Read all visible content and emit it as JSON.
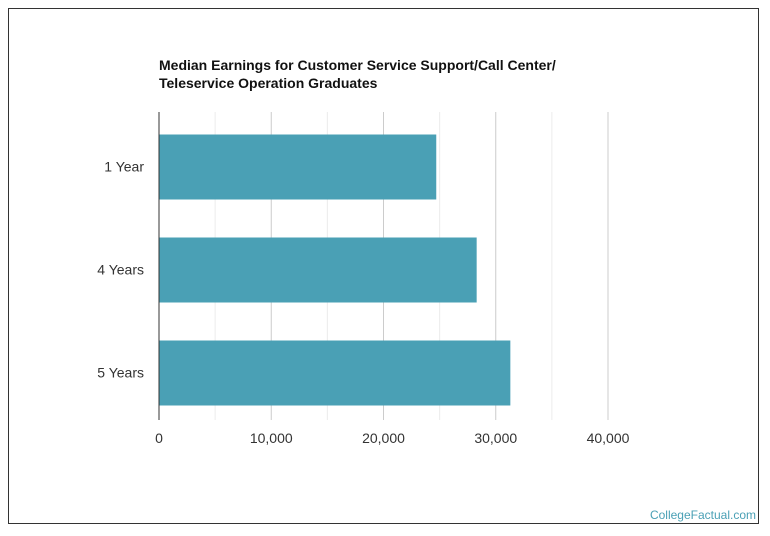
{
  "chart_data": {
    "type": "bar",
    "orientation": "horizontal",
    "title_lines": [
      "Median Earnings for Customer Service Support/Call Center/",
      "Teleservice Operation Graduates"
    ],
    "categories": [
      "1 Year",
      "4 Years",
      "5 Years"
    ],
    "values": [
      24700,
      28300,
      31300
    ],
    "xlim": [
      0,
      40000
    ],
    "x_ticks": [
      0,
      10000,
      20000,
      30000,
      40000
    ],
    "x_tick_labels": [
      "0",
      "10,000",
      "20,000",
      "30,000",
      "40,000"
    ],
    "xlabel": "",
    "ylabel": "",
    "grid": true,
    "bar_color": "#4aa0b5",
    "grid_color": "#dddddd"
  },
  "footer": {
    "credit": "CollegeFactual.com"
  }
}
